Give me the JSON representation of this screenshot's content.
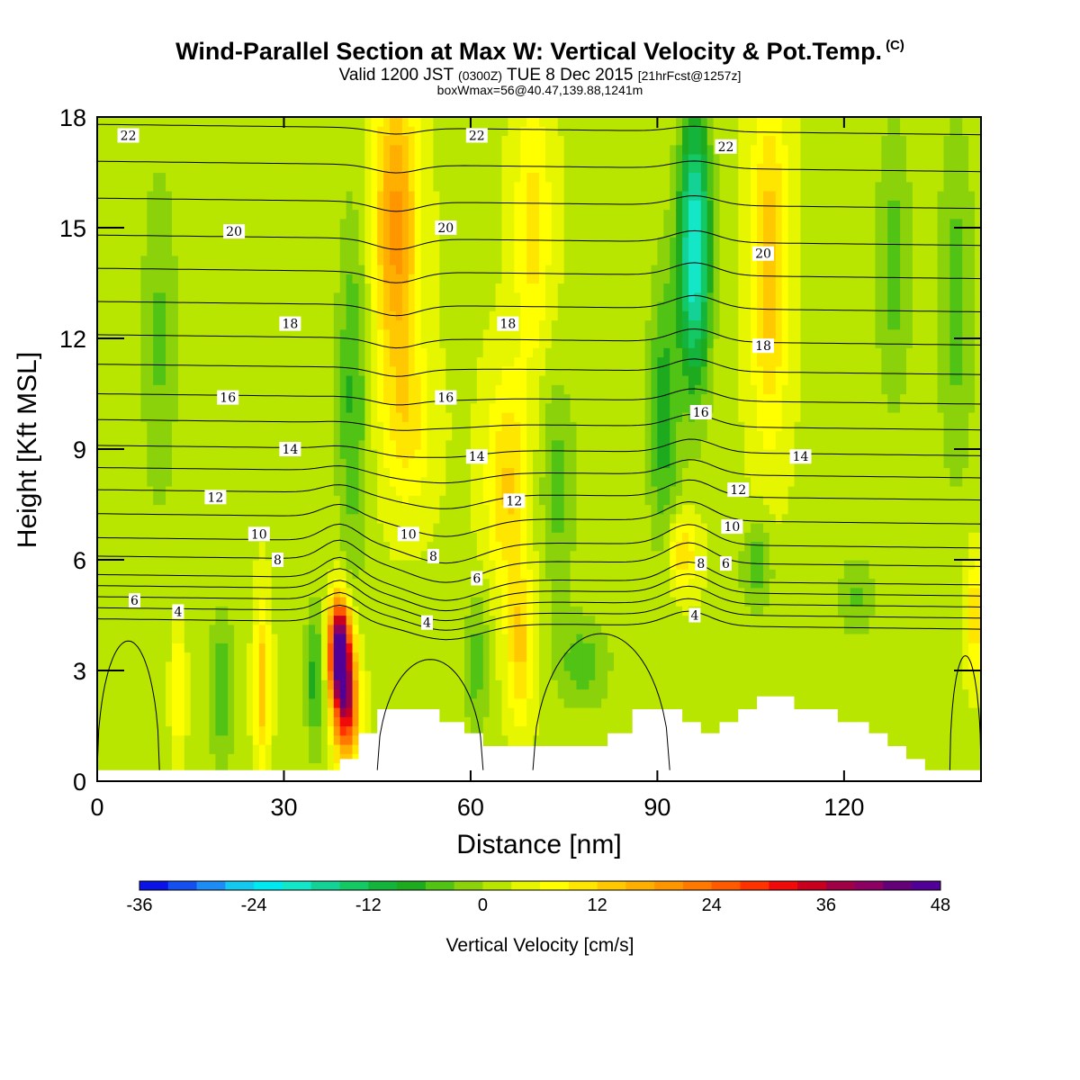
{
  "header": {
    "title": "Wind-Parallel Section at Max W: Vertical Velocity & Pot.Temp.",
    "title_suffix": "(C)",
    "valid_main": "Valid 1200 JST",
    "valid_small1": "(0300Z)",
    "valid_mid": "TUE 8 Dec 2015",
    "valid_small2": "[21hrFcst@1257z]",
    "subline": "boxWmax=56@40.47,139.88,1241m"
  },
  "chart_data": {
    "type": "heatmap",
    "xlabel": "Distance [nm]",
    "ylabel": "Height [Kft MSL]",
    "xlim": [
      0,
      142
    ],
    "ylim": [
      0,
      18
    ],
    "xticks": [
      0,
      30,
      60,
      90,
      120
    ],
    "yticks": [
      0,
      3,
      6,
      9,
      12,
      15,
      18
    ],
    "grid": false,
    "colorbar": {
      "title": "Vertical Velocity [cm/s]",
      "labels": [
        -36,
        -24,
        -12,
        0,
        12,
        24,
        36,
        48
      ],
      "levels": [
        -36,
        -33,
        -30,
        -27,
        -24,
        -21,
        -18,
        -15,
        -12,
        -9,
        -6,
        -3,
        0,
        3,
        6,
        9,
        12,
        15,
        18,
        21,
        24,
        27,
        30,
        33,
        36,
        39,
        42,
        45,
        48
      ],
      "colors": [
        "#0a14e6",
        "#1450f0",
        "#1e8cf5",
        "#14c8f0",
        "#00e8f0",
        "#14e6c8",
        "#14d296",
        "#14c864",
        "#14b43c",
        "#1eaa1e",
        "#50c314",
        "#8cd20a",
        "#b9e600",
        "#e6f500",
        "#ffff00",
        "#ffe600",
        "#ffc800",
        "#ffaf00",
        "#ff9600",
        "#ff7800",
        "#ff5a00",
        "#ff3200",
        "#f00a0a",
        "#c8001e",
        "#a00046",
        "#8c0064",
        "#640078",
        "#500096"
      ]
    },
    "theta_contours": {
      "units": "C",
      "levels": [
        4,
        6,
        8,
        10,
        12,
        14,
        16,
        18,
        20,
        22
      ],
      "heights_kft_at_x0": [
        4.4,
        5.0,
        5.6,
        6.6,
        7.9,
        9.1,
        10.5,
        12.1,
        14.8,
        17.8
      ],
      "labels": [
        {
          "text": "22",
          "x": 5,
          "y": 17.5
        },
        {
          "text": "22",
          "x": 61,
          "y": 17.5
        },
        {
          "text": "22",
          "x": 101,
          "y": 17.2
        },
        {
          "text": "20",
          "x": 22,
          "y": 14.9
        },
        {
          "text": "20",
          "x": 56,
          "y": 15.0
        },
        {
          "text": "20",
          "x": 107,
          "y": 14.3
        },
        {
          "text": "18",
          "x": 31,
          "y": 12.4
        },
        {
          "text": "18",
          "x": 66,
          "y": 12.4
        },
        {
          "text": "18",
          "x": 107,
          "y": 11.8
        },
        {
          "text": "16",
          "x": 21,
          "y": 10.4
        },
        {
          "text": "16",
          "x": 56,
          "y": 10.4
        },
        {
          "text": "16",
          "x": 97,
          "y": 10.0
        },
        {
          "text": "14",
          "x": 31,
          "y": 9.0
        },
        {
          "text": "14",
          "x": 61,
          "y": 8.8
        },
        {
          "text": "14",
          "x": 113,
          "y": 8.8
        },
        {
          "text": "12",
          "x": 19,
          "y": 7.7
        },
        {
          "text": "12",
          "x": 67,
          "y": 7.6
        },
        {
          "text": "12",
          "x": 103,
          "y": 7.9
        },
        {
          "text": "10",
          "x": 26,
          "y": 6.7
        },
        {
          "text": "10",
          "x": 50,
          "y": 6.7
        },
        {
          "text": "10",
          "x": 102,
          "y": 6.9
        },
        {
          "text": "8",
          "x": 29,
          "y": 6.0
        },
        {
          "text": "8",
          "x": 54,
          "y": 6.1
        },
        {
          "text": "8",
          "x": 97,
          "y": 5.9
        },
        {
          "text": "6",
          "x": 6,
          "y": 4.9
        },
        {
          "text": "6",
          "x": 61,
          "y": 5.5
        },
        {
          "text": "6",
          "x": 101,
          "y": 5.9
        },
        {
          "text": "4",
          "x": 13,
          "y": 4.6
        },
        {
          "text": "4",
          "x": 53,
          "y": 4.3
        },
        {
          "text": "4",
          "x": 96,
          "y": 4.5
        }
      ]
    },
    "terrain_kft": {
      "x": [
        0,
        39,
        39,
        42,
        42,
        45,
        45,
        55,
        55,
        59,
        59,
        62,
        62,
        65,
        65,
        82,
        82,
        86,
        86,
        94,
        94,
        97,
        97,
        100,
        100,
        103,
        103,
        106,
        106,
        112,
        112,
        119,
        119,
        124,
        124,
        127,
        127,
        130,
        130,
        133,
        133,
        136,
        136,
        139,
        139,
        142
      ],
      "z": [
        0.3,
        0.3,
        0.6,
        0.6,
        1.3,
        1.3,
        1.95,
        1.95,
        1.6,
        1.6,
        1.3,
        1.3,
        0.95,
        0.95,
        0.95,
        0.95,
        1.3,
        1.3,
        1.95,
        1.95,
        1.6,
        1.6,
        1.3,
        1.3,
        1.6,
        1.6,
        1.95,
        1.95,
        2.3,
        2.3,
        1.95,
        1.95,
        1.6,
        1.6,
        1.3,
        1.3,
        0.95,
        0.95,
        0.6,
        0.6,
        0.3,
        0.3,
        0.3,
        0.3,
        0.3,
        0.3
      ]
    },
    "velocity_features": [
      {
        "x": 39,
        "z": 3.6,
        "w": 48,
        "sx": 1.7,
        "sz": 1.3
      },
      {
        "x": 40,
        "z": 2.0,
        "w": 30,
        "sx": 2.0,
        "sz": 1.4
      },
      {
        "x": 35,
        "z": 2.8,
        "w": -10,
        "sx": 1.6,
        "sz": 2.0
      },
      {
        "x": 26.5,
        "z": 2.6,
        "w": 12,
        "sx": 1.2,
        "sz": 2.2
      },
      {
        "x": 20,
        "z": 2.5,
        "w": -9,
        "sx": 2.0,
        "sz": 2.0
      },
      {
        "x": 13,
        "z": 2.5,
        "w": 8,
        "sx": 1.0,
        "sz": 1.6
      },
      {
        "x": 48,
        "z": 15.0,
        "w": 17,
        "sx": 3.5,
        "sz": 4.0
      },
      {
        "x": 50,
        "z": 9.6,
        "w": 7,
        "sx": 4.0,
        "sz": 2.2
      },
      {
        "x": 41,
        "z": 10.5,
        "w": -9,
        "sx": 2.5,
        "sz": 5.0
      },
      {
        "x": 66,
        "z": 8.0,
        "w": 10,
        "sx": 3.5,
        "sz": 3.0
      },
      {
        "x": 68,
        "z": 3.6,
        "w": 10,
        "sx": 2.0,
        "sz": 2.0
      },
      {
        "x": 61,
        "z": 3.2,
        "w": -7,
        "sx": 2.0,
        "sz": 2.0
      },
      {
        "x": 78,
        "z": 3.2,
        "w": -7,
        "sx": 4.5,
        "sz": 1.3
      },
      {
        "x": 74,
        "z": 8.0,
        "w": -7,
        "sx": 3.0,
        "sz": 3.0
      },
      {
        "x": 70,
        "z": 15.0,
        "w": 8,
        "sx": 3.0,
        "sz": 3.5
      },
      {
        "x": 96,
        "z": 14.5,
        "w": -24,
        "sx": 2.6,
        "sz": 3.8
      },
      {
        "x": 91,
        "z": 10.0,
        "w": -10,
        "sx": 2.5,
        "sz": 4.0
      },
      {
        "x": 108,
        "z": 14.0,
        "w": 12,
        "sx": 3.0,
        "sz": 4.5
      },
      {
        "x": 94,
        "z": 6.2,
        "w": 10,
        "sx": 2.5,
        "sz": 1.0
      },
      {
        "x": 106,
        "z": 5.8,
        "w": -8,
        "sx": 2.5,
        "sz": 1.2
      },
      {
        "x": 122,
        "z": 5.0,
        "w": -6,
        "sx": 3.0,
        "sz": 1.2
      },
      {
        "x": 141,
        "z": 4.5,
        "w": 10,
        "sx": 1.5,
        "sz": 1.5
      },
      {
        "x": 128,
        "z": 14.0,
        "w": -7,
        "sx": 3.0,
        "sz": 4.0
      },
      {
        "x": 10,
        "z": 12.0,
        "w": -6,
        "sx": 3.0,
        "sz": 5.0
      },
      {
        "x": 138,
        "z": 13.0,
        "w": -7,
        "sx": 3.0,
        "sz": 5.0
      }
    ]
  }
}
